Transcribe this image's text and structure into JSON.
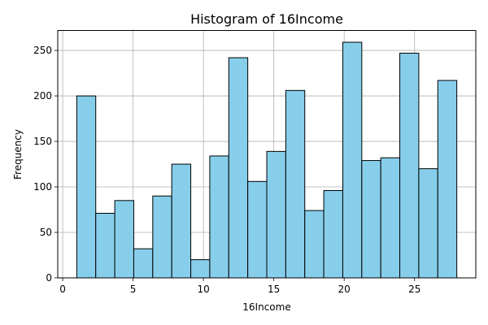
{
  "chart_data": {
    "type": "bar",
    "title": "Histogram of 16Income",
    "xlabel": "16Income",
    "ylabel": "Frequency",
    "bin_edges": [
      1.0,
      2.35,
      3.7,
      5.05,
      6.4,
      7.75,
      9.1,
      10.45,
      11.8,
      13.15,
      14.5,
      15.85,
      17.2,
      18.55,
      19.9,
      21.25,
      22.6,
      23.95,
      25.3,
      26.65,
      28.0
    ],
    "values": [
      200,
      71,
      85,
      32,
      90,
      125,
      20,
      134,
      242,
      106,
      139,
      206,
      74,
      96,
      259,
      129,
      132,
      247,
      120,
      217
    ],
    "x_ticks": [
      0,
      5,
      10,
      15,
      20,
      25
    ],
    "y_ticks": [
      0,
      50,
      100,
      150,
      200,
      250
    ],
    "xlim": [
      -0.35,
      29.35
    ],
    "ylim": [
      0,
      271.95
    ],
    "grid": true,
    "colors": {
      "bar_fill": "#87ceeb",
      "bar_edge": "#000000",
      "grid": "#b0b0b0"
    }
  }
}
